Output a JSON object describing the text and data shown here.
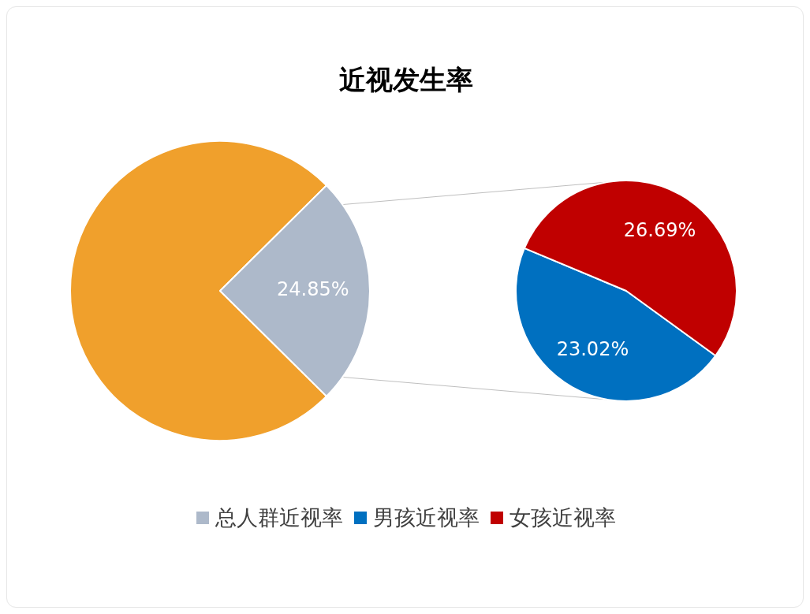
{
  "chart_data": [
    {
      "type": "pie",
      "title": "近视发生率",
      "categories": [
        null,
        "总人群近视率"
      ],
      "values": [
        75.15,
        24.85
      ],
      "colors": [
        "#f0a02c",
        "#adb9ca"
      ],
      "value_labels": [
        null,
        "24.85%"
      ],
      "legend": "bottom"
    },
    {
      "type": "pie",
      "categories": [
        "男孩近视率",
        "女孩近视率"
      ],
      "values": [
        23.02,
        26.69
      ],
      "colors": [
        "#0070c0",
        "#c00000"
      ],
      "value_labels": [
        "23.02%",
        "26.69%"
      ],
      "legend": "bottom"
    }
  ]
}
